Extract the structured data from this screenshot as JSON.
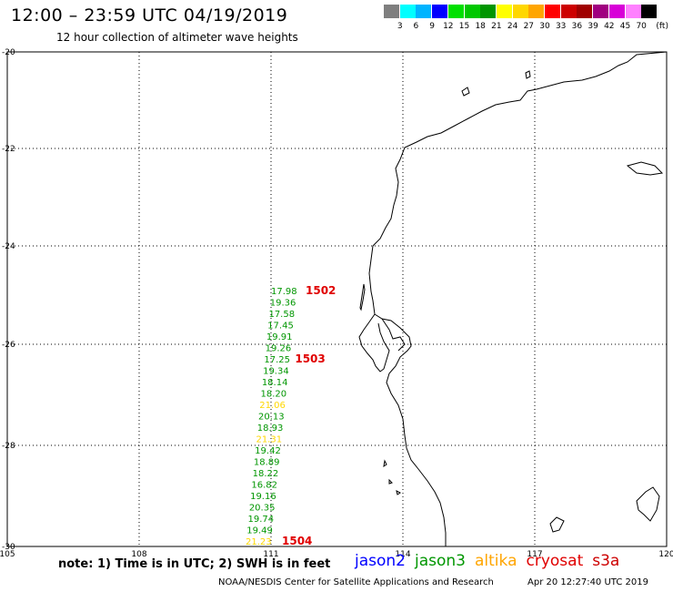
{
  "header": {
    "title": "12:00 – 23:59 UTC 04/19/2019",
    "subtitle": "12 hour collection of altimeter wave heights"
  },
  "colorbar": {
    "unit": "(ft)",
    "swatches": [
      "#7f7f7f",
      "#00ffff",
      "#00b4ff",
      "#0000ff",
      "#00e000",
      "#00c800",
      "#009600",
      "#ffff00",
      "#ffd700",
      "#ffa500",
      "#ff0000",
      "#cd0000",
      "#a00000",
      "#a00080",
      "#d800d8",
      "#ff80ff",
      "#000000"
    ],
    "labels": [
      "3",
      "6",
      "9",
      "12",
      "15",
      "18",
      "21",
      "24",
      "27",
      "30",
      "33",
      "36",
      "39",
      "42",
      "45",
      "70"
    ]
  },
  "axes": {
    "lat_labels": [
      "-20",
      "-22",
      "-24",
      "-26",
      "-28",
      "-30"
    ],
    "lon_labels": [
      "105",
      "108",
      "111",
      "114",
      "117",
      "120"
    ]
  },
  "swh_readings": [
    {
      "value": "17.98",
      "color": "#009600"
    },
    {
      "value": "19.36",
      "color": "#009600"
    },
    {
      "value": "17.58",
      "color": "#009600"
    },
    {
      "value": "17.45",
      "color": "#009600"
    },
    {
      "value": "19.91",
      "color": "#009600"
    },
    {
      "value": "19.26",
      "color": "#009600"
    },
    {
      "value": "17.25",
      "color": "#009600"
    },
    {
      "value": "19.34",
      "color": "#009600"
    },
    {
      "value": "18.14",
      "color": "#009600"
    },
    {
      "value": "18.20",
      "color": "#009600"
    },
    {
      "value": "21.06",
      "color": "#ffd700"
    },
    {
      "value": "20.13",
      "color": "#009600"
    },
    {
      "value": "18.93",
      "color": "#009600"
    },
    {
      "value": "21.31",
      "color": "#ffd700"
    },
    {
      "value": "19.42",
      "color": "#009600"
    },
    {
      "value": "18.89",
      "color": "#009600"
    },
    {
      "value": "18.22",
      "color": "#009600"
    },
    {
      "value": "16.82",
      "color": "#009600"
    },
    {
      "value": "19.16",
      "color": "#009600"
    },
    {
      "value": "20.35",
      "color": "#009600"
    },
    {
      "value": "19.74",
      "color": "#009600"
    },
    {
      "value": "19.49",
      "color": "#009600"
    },
    {
      "value": "21.23",
      "color": "#ffd700"
    }
  ],
  "pass_labels": [
    "1502",
    "1503",
    "1504"
  ],
  "note": "note: 1) Time is in UTC; 2) SWH is in feet",
  "legend": [
    {
      "name": "jason2",
      "color": "#0000ff"
    },
    {
      "name": "jason3",
      "color": "#009600"
    },
    {
      "name": "altika",
      "color": "#ffa500"
    },
    {
      "name": "cryosat",
      "color": "#e00000"
    },
    {
      "name": "s3a",
      "color": "#cd0000"
    }
  ],
  "footer": {
    "credit": "NOAA/NESDIS Center for Satellite Applications and Research",
    "timestamp": "Apr 20 12:27:40 UTC 2019"
  }
}
